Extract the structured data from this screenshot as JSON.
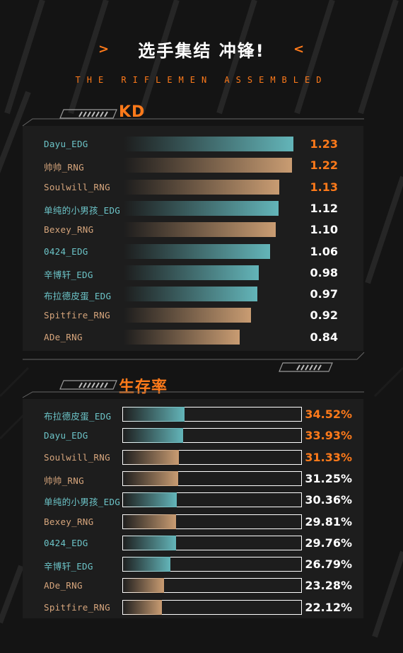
{
  "header": {
    "title": "选手集结 冲锋!",
    "left_chevron": ">",
    "right_chevron": "<",
    "subtitle": "THE RIFLEMEN ASSEMBLED"
  },
  "colors": {
    "accent": "#ff7a1a",
    "teal": "#63b5b9",
    "tan": "#c99c72",
    "text_teal": "#6cc4c8",
    "text_tan": "#d6a57c"
  },
  "chart_data": [
    {
      "type": "bar",
      "title": "KD",
      "categories": [
        "Dayu_EDG",
        "帅帅_RNG",
        "Soulwill_RNG",
        "单纯的小男孩_EDG",
        "Bexey_RNG",
        "0424_EDG",
        "辛博轩_EDG",
        "布拉德皮蛋_EDG",
        "Spitfire_RNG",
        "ADe_RNG"
      ],
      "values": [
        1.23,
        1.22,
        1.13,
        1.12,
        1.1,
        1.06,
        0.98,
        0.97,
        0.92,
        0.84
      ],
      "value_labels": [
        "1.23",
        "1.22",
        "1.13",
        "1.12",
        "1.10",
        "1.06",
        "0.98",
        "0.97",
        "0.92",
        "0.84"
      ],
      "teams": [
        "EDG",
        "RNG",
        "RNG",
        "EDG",
        "RNG",
        "EDG",
        "EDG",
        "EDG",
        "RNG",
        "RNG"
      ],
      "highlight_top": 3
    },
    {
      "type": "bar",
      "title": "生存率",
      "categories": [
        "布拉德皮蛋_EDG",
        "Dayu_EDG",
        "Soulwill_RNG",
        "帅帅_RNG",
        "单纯的小男孩_EDG",
        "Bexey_RNG",
        "0424_EDG",
        "辛博轩_EDG",
        "ADe_RNG",
        "Spitfire_RNG"
      ],
      "values": [
        34.52,
        33.93,
        31.33,
        31.25,
        30.36,
        29.81,
        29.76,
        26.79,
        23.28,
        22.12
      ],
      "value_labels": [
        "34.52%",
        "33.93%",
        "31.33%",
        "31.25%",
        "30.36%",
        "29.81%",
        "29.76%",
        "26.79%",
        "23.28%",
        "22.12%"
      ],
      "teams": [
        "EDG",
        "EDG",
        "RNG",
        "RNG",
        "EDG",
        "RNG",
        "EDG",
        "EDG",
        "RNG",
        "RNG"
      ],
      "highlight_top": 3,
      "ylim": [
        0,
        100
      ]
    }
  ]
}
